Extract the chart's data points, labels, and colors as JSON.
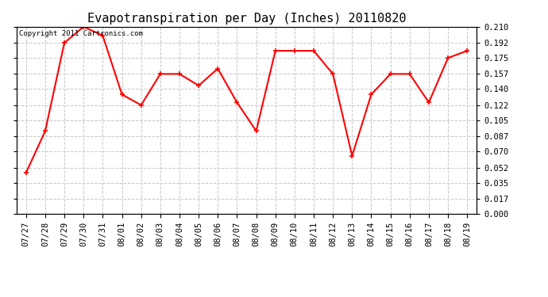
{
  "title": "Evapotranspiration per Day (Inches) 20110820",
  "copyright": "Copyright 2011 Cartronics.com",
  "x_labels": [
    "07/27",
    "07/28",
    "07/29",
    "07/30",
    "07/31",
    "08/01",
    "08/02",
    "08/03",
    "08/04",
    "08/05",
    "08/06",
    "08/07",
    "08/08",
    "08/09",
    "08/10",
    "08/11",
    "08/12",
    "08/13",
    "08/14",
    "08/15",
    "08/16",
    "08/17",
    "08/18",
    "08/19"
  ],
  "y_values": [
    0.046,
    0.093,
    0.192,
    0.21,
    0.2,
    0.134,
    0.122,
    0.157,
    0.157,
    0.144,
    0.163,
    0.125,
    0.093,
    0.183,
    0.183,
    0.183,
    0.157,
    0.065,
    0.134,
    0.157,
    0.157,
    0.125,
    0.175,
    0.183
  ],
  "line_color": "red",
  "marker": "+",
  "marker_size": 5,
  "marker_linewidth": 1.2,
  "line_width": 1.5,
  "ylim": [
    0.0,
    0.21
  ],
  "yticks": [
    0.0,
    0.017,
    0.035,
    0.052,
    0.07,
    0.087,
    0.105,
    0.122,
    0.14,
    0.157,
    0.175,
    0.192,
    0.21
  ],
  "background_color": "#ffffff",
  "grid_color": "#c8c8c8",
  "title_fontsize": 11,
  "tick_fontsize": 7.5,
  "copyright_fontsize": 6.5,
  "title_font": "monospace",
  "tick_font": "monospace"
}
